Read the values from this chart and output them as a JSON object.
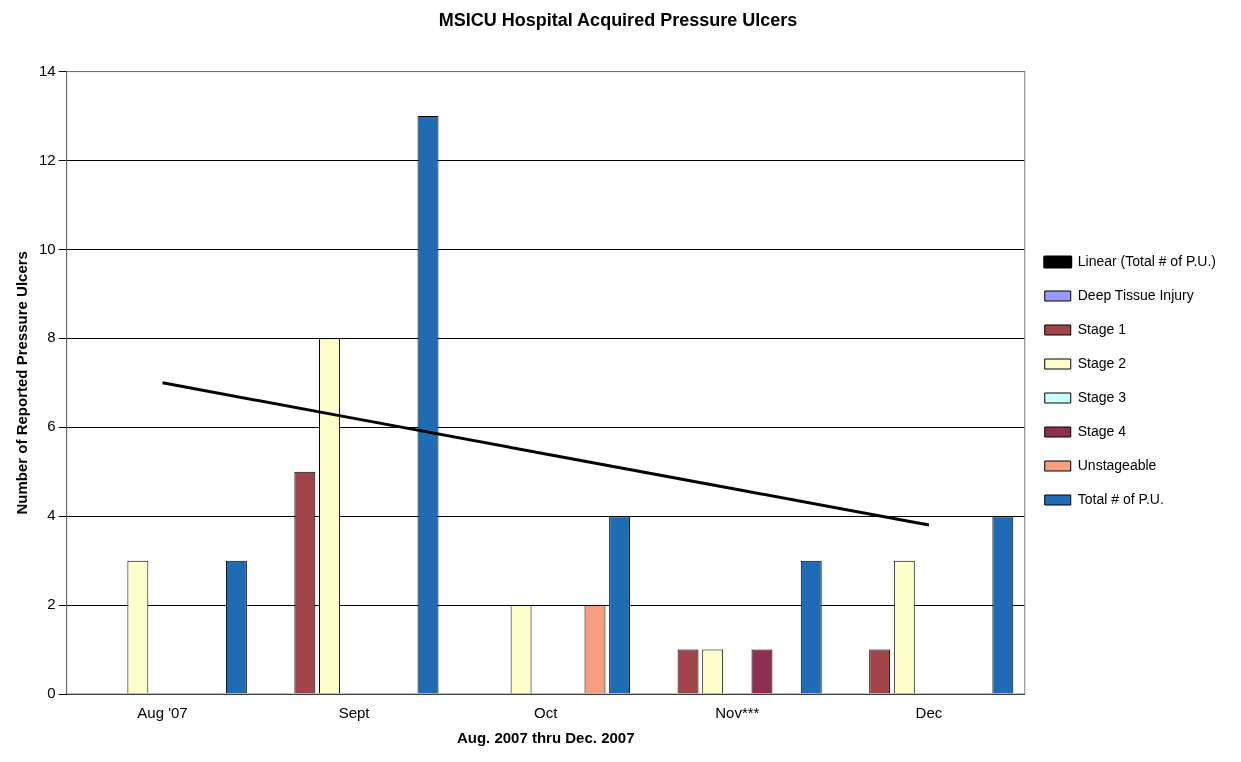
{
  "chart_data": {
    "type": "bar",
    "title": "MSICU Hospital Acquired Pressure Ulcers",
    "xlabel": "Aug. 2007 thru Dec. 2007",
    "ylabel": "Number of Reported Pressure Ulcers",
    "categories": [
      "Aug '07",
      "Sept",
      "Oct",
      "Nov***",
      "Dec"
    ],
    "series": [
      {
        "name": "Deep Tissue Injury",
        "color": "#9999ff",
        "values": [
          0,
          0,
          0,
          0,
          0
        ]
      },
      {
        "name": "Stage 1",
        "color": "#a0444a",
        "values": [
          0,
          5,
          0,
          1,
          1
        ]
      },
      {
        "name": "Stage 2",
        "color": "#ffffcc",
        "values": [
          3,
          8,
          2,
          1,
          3
        ]
      },
      {
        "name": "Stage 3",
        "color": "#ccffff",
        "values": [
          0,
          0,
          0,
          0,
          0
        ]
      },
      {
        "name": "Stage 4",
        "color": "#8e2f52",
        "values": [
          0,
          0,
          0,
          1,
          0
        ]
      },
      {
        "name": "Unstageable",
        "color": "#f4a080",
        "values": [
          0,
          0,
          2,
          0,
          0
        ]
      },
      {
        "name": "Total # of P.U.",
        "color": "#1f6cb5",
        "values": [
          3,
          13,
          4,
          3,
          4
        ]
      },
      {
        "name": "Linear (Total # of P.U.)",
        "type": "line",
        "color": "#000000",
        "values": [
          7,
          6.2,
          5.4,
          4.6,
          3.8
        ]
      }
    ],
    "ylim": [
      0,
      14
    ],
    "yticks": [
      0,
      2,
      4,
      6,
      8,
      10,
      12,
      14
    ],
    "grid": "y",
    "legend": "right",
    "marker": "none"
  }
}
